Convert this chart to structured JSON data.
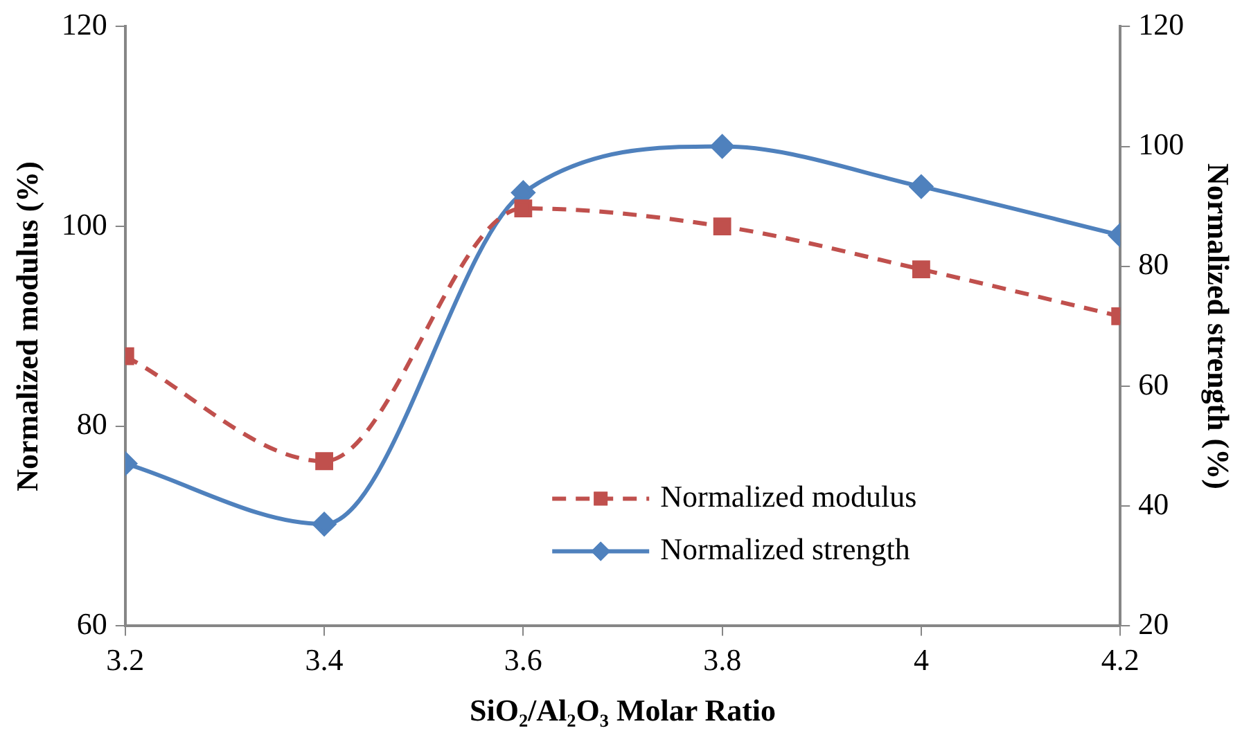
{
  "chart_data": {
    "type": "line",
    "xlabel": "SiO₂/Al₂O₃ Molar Ratio",
    "ylabel": "Normalized modulus (%)",
    "y2label": "Normalized strength (%)",
    "x": [
      3.2,
      3.4,
      3.6,
      3.8,
      4.0,
      4.2
    ],
    "xlim": [
      3.2,
      4.2
    ],
    "xticks": [
      3.2,
      3.4,
      3.6,
      3.8,
      {
        "value": 4,
        "label": "4"
      },
      4.2
    ],
    "ylim": [
      60,
      120
    ],
    "yticks": [
      60,
      80,
      100,
      120
    ],
    "y2lim": [
      20,
      120
    ],
    "y2ticks": [
      20,
      40,
      60,
      80,
      100,
      120
    ],
    "grid": false,
    "legend": "bottom right",
    "series": [
      {
        "name": "Normalized modulus",
        "color": "#c0504d",
        "values": [
          87,
          76.5,
          101.8,
          100,
          95.7,
          91
        ],
        "marker": "square",
        "line_style": "dashed"
      },
      {
        "name": "Normalized strength",
        "color": "#4f81bd",
        "values": [
          47.1,
          37,
          92.3,
          100,
          93.3,
          85.2
        ],
        "marker": "diamond",
        "line_style": "solid",
        "axis": "y2"
      }
    ]
  }
}
